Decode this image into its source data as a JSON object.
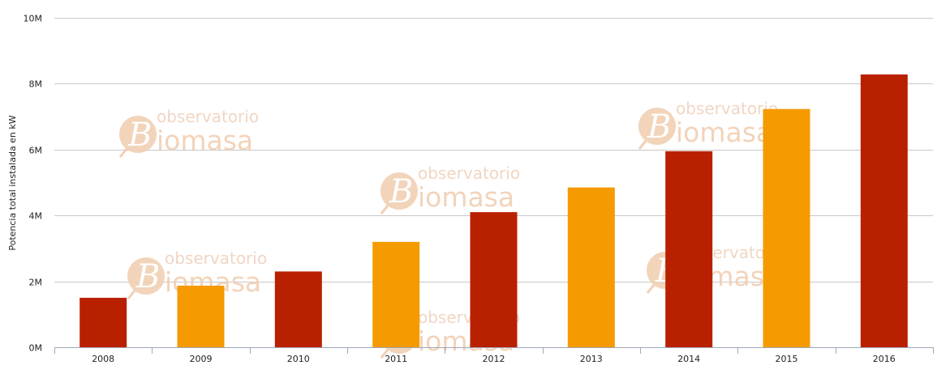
{
  "chart_data": {
    "type": "bar",
    "categories": [
      "2008",
      "2009",
      "2010",
      "2011",
      "2012",
      "2013",
      "2014",
      "2015",
      "2016"
    ],
    "values": [
      1500000,
      1870000,
      2300000,
      3200000,
      4100000,
      4850000,
      5950000,
      7230000,
      8280000
    ],
    "bar_colors": [
      "#b92000",
      "#f59a00",
      "#b92000",
      "#f59a00",
      "#b92000",
      "#f59a00",
      "#b92000",
      "#f59a00",
      "#b92000"
    ],
    "xlabel": "",
    "ylabel": "Potencia total instalada en kW",
    "ylim": [
      0,
      10000000
    ],
    "yticks": [
      {
        "value": 0,
        "label": "0M"
      },
      {
        "value": 2000000,
        "label": "2M"
      },
      {
        "value": 4000000,
        "label": "4M"
      },
      {
        "value": 6000000,
        "label": "6M"
      },
      {
        "value": 8000000,
        "label": "8M"
      },
      {
        "value": 10000000,
        "label": "10M"
      }
    ],
    "grid": true,
    "legend": "none"
  },
  "watermark": {
    "line1": "observatorio",
    "line2": "iomasa",
    "logo_letter": "B"
  },
  "colors": {
    "grid": "#c8c8c8",
    "axis": "#a0a8b8",
    "watermark_circle": "#f1cfb3"
  }
}
